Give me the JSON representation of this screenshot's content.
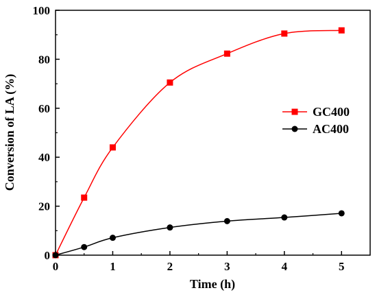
{
  "chart_data": {
    "type": "line",
    "title": "",
    "xlabel": "Time (h)",
    "ylabel": "Conversion of LA (%)",
    "xlim": [
      0,
      5.5
    ],
    "ylim": [
      0,
      100
    ],
    "x_ticks": [
      0,
      1,
      2,
      3,
      4,
      5
    ],
    "y_ticks": [
      0,
      20,
      40,
      60,
      80,
      100
    ],
    "grid": false,
    "legend_position": "right-center",
    "series": [
      {
        "name": "GC400",
        "color": "#ff0000",
        "marker": "square",
        "x": [
          0,
          0.5,
          1,
          2,
          3,
          4,
          5
        ],
        "y": [
          0,
          23.5,
          44,
          70.5,
          82.3,
          90.5,
          91.8
        ]
      },
      {
        "name": "AC400",
        "color": "#000000",
        "marker": "circle",
        "x": [
          0,
          0.5,
          1,
          2,
          3,
          4,
          5
        ],
        "y": [
          0,
          3.3,
          7.1,
          11.3,
          13.9,
          15.4,
          17.1
        ]
      }
    ]
  }
}
